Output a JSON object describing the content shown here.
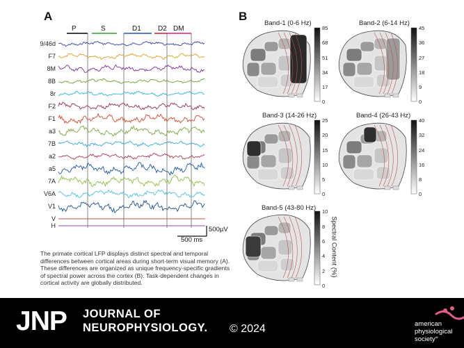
{
  "panel_a": {
    "letter": "A",
    "epochs": [
      "P",
      "S",
      "D1",
      "D2",
      "DM"
    ],
    "epoch_colors": [
      "#000000",
      "#2e9e2e",
      "#2257c6",
      "#c0203a",
      "#d01f8a"
    ],
    "channels": [
      "9/46d",
      "F7",
      "8M",
      "8B",
      "8r",
      "F2",
      "F1",
      "a3",
      "7B",
      "a2",
      "a5",
      "7A",
      "V6A",
      "V1",
      "V",
      "H"
    ],
    "channel_colors": [
      "#2e3ea8",
      "#d7a321",
      "#7a2d99",
      "#6aa62e",
      "#29b5d6",
      "#9c2a57",
      "#d7482c",
      "#7aa83a",
      "#2fa9cf",
      "#b0344e",
      "#1e55a8",
      "#90bd3c",
      "#49c1dd",
      "#1d4f8a",
      "#c2504f",
      "#8a4fa0"
    ],
    "scale_voltage": "500µV",
    "scale_time": "500 ms"
  },
  "panel_b": {
    "letter": "B",
    "maps": [
      {
        "title": "Band-1 (0-6 Hz)",
        "ticks": [
          "85",
          "68",
          "51",
          "34",
          "17",
          "0"
        ]
      },
      {
        "title": "Band-2 (6-14 Hz)",
        "ticks": [
          "45",
          "36",
          "27",
          "18",
          "9",
          "0"
        ]
      },
      {
        "title": "Band-3 (14-26 Hz)",
        "ticks": [
          "25",
          "20",
          "15",
          "10",
          "5",
          "0"
        ]
      },
      {
        "title": "Band-4 (26-43 Hz)",
        "ticks": [
          "40",
          "32",
          "24",
          "16",
          "8",
          "0"
        ]
      },
      {
        "title": "Band-5 (43-80 Hz)",
        "ticks": [
          "10",
          "8",
          "6",
          "4",
          "2",
          "0"
        ]
      }
    ],
    "colorbar_label": "Spectral Content (%)"
  },
  "caption": "The primate cortical LFP displays distinct spectral and temporal differences between cortical areas during short-term visual memory (A). These differences are organized as unique frequency-specific gradients of spectral power across the cortex (B). Task-dependent changes in cortical activity are globally distributed.",
  "footer": {
    "logo": "JNP",
    "journal_line1": "JOURNAL OF",
    "journal_line2": "NEUROPHYSIOLOGY.",
    "year": "© 2024",
    "society_line1": "american",
    "society_line2": "physiological",
    "society_line3": "society°"
  }
}
